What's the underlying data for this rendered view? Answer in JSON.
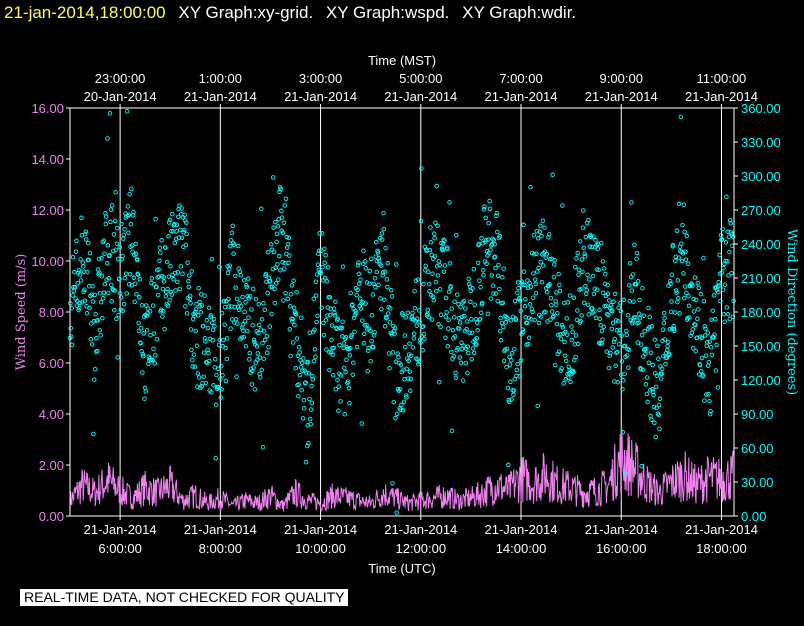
{
  "header": {
    "timestamp": "21-jan-2014,18:00:00",
    "titles": [
      "XY Graph:xy-grid.",
      "XY Graph:wspd.",
      "XY Graph:wdir."
    ]
  },
  "footer": {
    "quality_note": "REAL-TIME DATA, NOT CHECKED FOR QUALITY"
  },
  "colors": {
    "background": "#000000",
    "frame": "#ffffff",
    "speed": "#ee82ee",
    "direction": "#00ffff",
    "timestamp": "#ffff55",
    "text": "#ffffff"
  },
  "chart_data": {
    "type": "scatter",
    "xlabel_bottom": "Time (UTC)",
    "xlabel_top": "Time (MST)",
    "ylabel_left": "Wind Speed (m/s)",
    "ylabel_right": "Wind Direction (degrees)",
    "x_range_utc_hours": [
      5.0,
      18.25
    ],
    "bottom_ticks": [
      {
        "hour": 6,
        "date": "21-Jan-2014",
        "time": "6:00:00"
      },
      {
        "hour": 8,
        "date": "21-Jan-2014",
        "time": "8:00:00"
      },
      {
        "hour": 10,
        "date": "21-Jan-2014",
        "time": "10:00:00"
      },
      {
        "hour": 12,
        "date": "21-Jan-2014",
        "time": "12:00:00"
      },
      {
        "hour": 14,
        "date": "21-Jan-2014",
        "time": "14:00:00"
      },
      {
        "hour": 16,
        "date": "21-Jan-2014",
        "time": "16:00:00"
      },
      {
        "hour": 18,
        "date": "21-Jan-2014",
        "time": "18:00:00"
      }
    ],
    "top_ticks": [
      {
        "hour": 6,
        "time": "23:00:00",
        "date": "20-Jan-2014"
      },
      {
        "hour": 8,
        "time": "1:00:00",
        "date": "21-Jan-2014"
      },
      {
        "hour": 10,
        "time": "3:00:00",
        "date": "21-Jan-2014"
      },
      {
        "hour": 12,
        "time": "5:00:00",
        "date": "21-Jan-2014"
      },
      {
        "hour": 14,
        "time": "7:00:00",
        "date": "21-Jan-2014"
      },
      {
        "hour": 16,
        "time": "9:00:00",
        "date": "21-Jan-2014"
      },
      {
        "hour": 18,
        "time": "11:00:00",
        "date": "21-Jan-2014"
      }
    ],
    "left_axis": {
      "range": [
        0,
        16
      ],
      "ticks": [
        "0.00",
        "2.00",
        "4.00",
        "6.00",
        "8.00",
        "10.00",
        "12.00",
        "14.00",
        "16.00"
      ]
    },
    "right_axis": {
      "range": [
        0,
        360
      ],
      "ticks": [
        "0.00",
        "30.00",
        "60.00",
        "90.00",
        "120.00",
        "150.00",
        "180.00",
        "210.00",
        "240.00",
        "270.00",
        "300.00",
        "330.00",
        "360.00"
      ]
    },
    "grid": "vertical lines at each labeled hour",
    "series": [
      {
        "type": "line",
        "axis": "left",
        "color": "#ee82ee",
        "hours": [
          5.0,
          5.25,
          5.5,
          5.75,
          6.0,
          6.25,
          6.5,
          6.75,
          7.0,
          7.25,
          7.5,
          7.75,
          8.0,
          8.25,
          8.5,
          8.75,
          9.0,
          9.25,
          9.5,
          9.75,
          10.0,
          10.25,
          10.5,
          10.75,
          11.0,
          11.25,
          11.5,
          11.75,
          12.0,
          12.25,
          12.5,
          12.75,
          13.0,
          13.25,
          13.5,
          13.75,
          14.0,
          14.25,
          14.5,
          14.75,
          15.0,
          15.25,
          15.5,
          15.75,
          16.0,
          16.25,
          16.5,
          16.75,
          17.0,
          17.25,
          17.5,
          17.75,
          18.0,
          18.25
        ],
        "values": [
          0.6,
          1.2,
          0.9,
          1.4,
          1.0,
          0.7,
          1.1,
          0.9,
          1.2,
          0.6,
          0.8,
          0.5,
          0.7,
          0.4,
          0.6,
          0.5,
          0.8,
          0.4,
          0.9,
          0.6,
          0.5,
          0.8,
          0.7,
          0.6,
          0.5,
          0.9,
          0.7,
          0.5,
          0.6,
          0.7,
          0.8,
          0.6,
          0.7,
          0.9,
          1.2,
          1.0,
          1.5,
          1.3,
          1.6,
          1.2,
          1.1,
          0.9,
          1.0,
          1.2,
          2.3,
          1.9,
          1.3,
          0.9,
          1.3,
          1.6,
          1.2,
          1.5,
          1.4,
          1.6
        ]
      },
      {
        "type": "scatter",
        "axis": "right",
        "color": "#00ffff",
        "marker": "open-circle",
        "hours": [
          5.0,
          5.25,
          5.5,
          5.75,
          6.0,
          6.25,
          6.5,
          6.75,
          7.0,
          7.25,
          7.5,
          7.75,
          8.0,
          8.25,
          8.5,
          8.75,
          9.0,
          9.25,
          9.5,
          9.75,
          10.0,
          10.25,
          10.5,
          10.75,
          11.0,
          11.25,
          11.5,
          11.75,
          12.0,
          12.25,
          12.5,
          12.75,
          13.0,
          13.25,
          13.5,
          13.75,
          14.0,
          14.25,
          14.5,
          14.75,
          15.0,
          15.25,
          15.5,
          15.75,
          16.0,
          16.25,
          16.5,
          16.75,
          17.0,
          17.25,
          17.5,
          17.75,
          18.0,
          18.25
        ],
        "values": [
          185,
          230,
          160,
          240,
          210,
          250,
          140,
          190,
          220,
          240,
          160,
          150,
          130,
          220,
          170,
          150,
          200,
          260,
          160,
          100,
          220,
          150,
          120,
          200,
          180,
          230,
          120,
          150,
          180,
          220,
          200,
          150,
          170,
          230,
          240,
          140,
          170,
          210,
          220,
          160,
          150,
          230,
          200,
          180,
          140,
          200,
          150,
          100,
          200,
          230,
          180,
          120,
          210,
          220
        ]
      }
    ]
  }
}
